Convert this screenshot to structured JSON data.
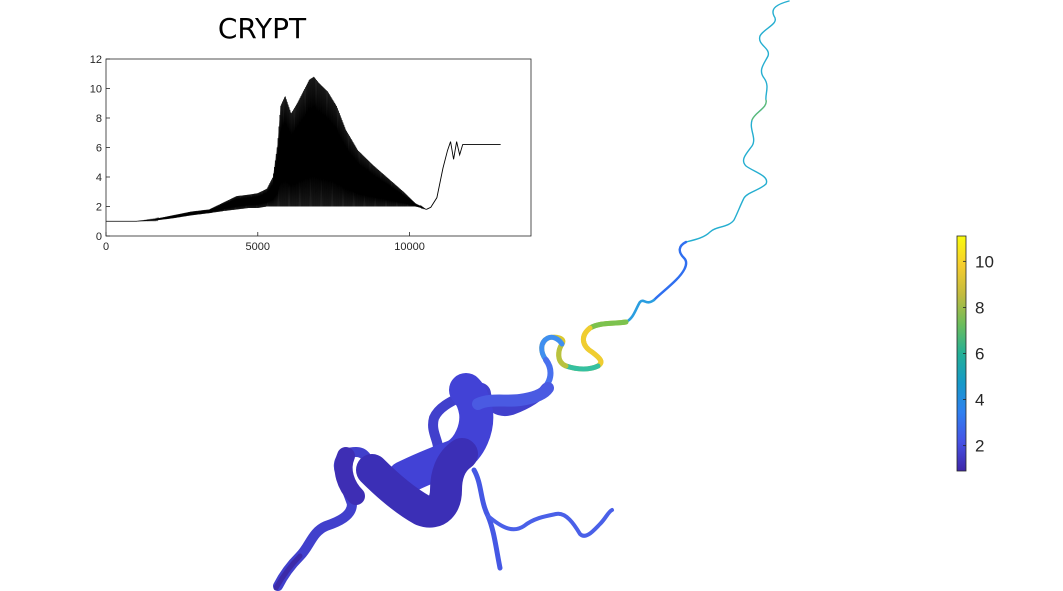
{
  "chart_data": [
    {
      "type": "line",
      "title": "CRYPT",
      "xlabel": "",
      "ylabel": "",
      "xlim": [
        0,
        14000
      ],
      "ylim": [
        0,
        12
      ],
      "x_ticks": [
        "0",
        "5000",
        "10000"
      ],
      "y_ticks": [
        "0",
        "2",
        "4",
        "6",
        "8",
        "10",
        "12"
      ],
      "grid": false,
      "envelope": {
        "x": [
          0,
          1000,
          1600,
          2200,
          2800,
          3400,
          3900,
          4300,
          4700,
          5000,
          5300,
          5500,
          5650,
          5750,
          5900,
          6100,
          6300,
          6500,
          6700,
          6850,
          7000,
          7300,
          7600,
          7900,
          8300,
          8800,
          9300,
          9800,
          10200,
          10400,
          10550
        ],
        "upper": [
          1.0,
          1.0,
          1.15,
          1.4,
          1.65,
          1.8,
          2.3,
          2.7,
          2.8,
          2.9,
          3.2,
          4.0,
          6.2,
          8.8,
          9.5,
          8.3,
          9.0,
          9.8,
          10.6,
          10.8,
          10.4,
          9.8,
          8.8,
          7.2,
          5.8,
          4.8,
          3.9,
          3.0,
          2.2,
          2.0,
          1.8
        ],
        "lower": [
          1.0,
          1.0,
          1.05,
          1.2,
          1.4,
          1.55,
          1.7,
          1.8,
          1.9,
          1.9,
          2.0,
          2.0,
          2.0,
          2.0,
          2.0,
          2.0,
          2.0,
          2.0,
          2.0,
          2.0,
          2.0,
          2.0,
          2.0,
          2.0,
          2.0,
          2.0,
          2.0,
          2.0,
          2.0,
          1.9,
          1.8
        ]
      },
      "tail": {
        "x": [
          10550,
          10700,
          10900,
          11100,
          11250,
          11350,
          11450,
          11550,
          11650,
          11750,
          11850,
          13000
        ],
        "y": [
          1.8,
          1.95,
          2.6,
          4.6,
          5.8,
          6.4,
          5.2,
          6.4,
          5.5,
          6.2,
          6.2,
          6.2
        ]
      }
    },
    {
      "type": "heatmap",
      "colorbar_ticks": [
        2,
        4,
        6,
        8,
        10
      ],
      "colorbar_range": [
        0.9,
        11.1
      ],
      "colormap": [
        "#3e26a8",
        "#4653e6",
        "#2f80f0",
        "#169ac8",
        "#24b096",
        "#6cbd5b",
        "#c2bb3f",
        "#f6cd2e",
        "#f9fb0e"
      ]
    }
  ]
}
